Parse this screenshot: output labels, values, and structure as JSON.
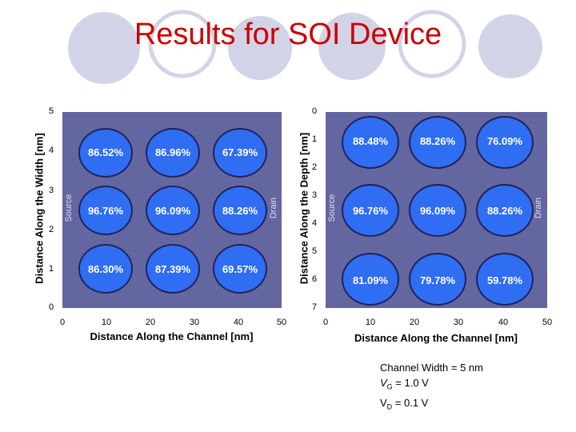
{
  "title": "Results for SOI Device",
  "left_plot": {
    "ylabel": "Distance Along the Width [nm]",
    "xlabel": "Distance Along the Channel [nm]",
    "yticks": [
      "5",
      "4",
      "3",
      "2",
      "1",
      "0"
    ],
    "xticks": [
      "0",
      "10",
      "20",
      "30",
      "40",
      "50"
    ],
    "source_label": "Source",
    "drain_label": "Drain",
    "cells": [
      [
        "86.52%",
        "86.96%",
        "67.39%"
      ],
      [
        "96.76%",
        "96.09%",
        "88.26%"
      ],
      [
        "86.30%",
        "87.39%",
        "69.57%"
      ]
    ]
  },
  "right_plot": {
    "ylabel": "Distance Along the Depth [nm]",
    "xlabel": "Distance Along the Channel [nm]",
    "yticks": [
      "0",
      "1",
      "2",
      "3",
      "4",
      "5",
      "6",
      "7"
    ],
    "xticks": [
      "0",
      "10",
      "20",
      "30",
      "40",
      "50"
    ],
    "source_label": "Source",
    "drain_label": "Drain",
    "cells": [
      [
        "88.48%",
        "88.26%",
        "76.09%"
      ],
      [
        "96.76%",
        "96.09%",
        "88.26%"
      ],
      [
        "81.09%",
        "79.78%",
        "59.78%"
      ]
    ]
  },
  "params": {
    "line1": "Channel Width = 5 nm",
    "vg_sym": "V",
    "vg_sub": "G",
    "vg_val": " = 1.0 V",
    "vd_sym": "V",
    "vd_sub": "D",
    "vd_val": " = 0.1 V"
  },
  "colors": {
    "title": "#cc0000",
    "plot_bg": "#6466a0",
    "circle_fill": "#2f6ef2",
    "deco": "#d3d3e8"
  }
}
